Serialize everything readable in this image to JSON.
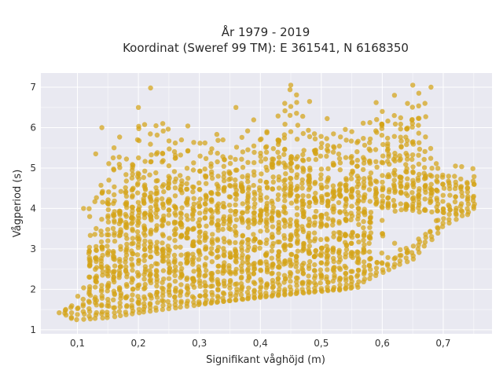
{
  "chart_data": {
    "type": "scatter",
    "title": "År 1979 - 2019",
    "subtitle": "Koordinat (Sweref 99 TM): E 361541, N 6168350",
    "xlabel": "Signifikant våghöjd (m)",
    "ylabel": "Vågperiod (s)",
    "xlim": [
      0.04,
      0.78
    ],
    "ylim": [
      0.9,
      7.35
    ],
    "x_ticks": [
      0.1,
      0.2,
      0.3,
      0.4,
      0.5,
      0.6,
      0.7
    ],
    "x_tick_labels": [
      "0,1",
      "0,2",
      "0,3",
      "0,4",
      "0,5",
      "0,6",
      "0,7"
    ],
    "y_ticks": [
      1,
      2,
      3,
      4,
      5,
      6,
      7
    ],
    "y_tick_labels": [
      "1",
      "2",
      "3",
      "4",
      "5",
      "6",
      "7"
    ],
    "grid": true,
    "marker_color": "#d4a418",
    "background_color": "#e9e9f1",
    "lower_envelope": [
      [
        0.07,
        1.42
      ],
      [
        0.1,
        1.25
      ],
      [
        0.15,
        1.3
      ],
      [
        0.2,
        1.42
      ],
      [
        0.25,
        1.52
      ],
      [
        0.3,
        1.62
      ],
      [
        0.35,
        1.72
      ],
      [
        0.4,
        1.8
      ],
      [
        0.45,
        1.88
      ],
      [
        0.5,
        1.95
      ],
      [
        0.55,
        2.03
      ],
      [
        0.6,
        2.42
      ],
      [
        0.65,
        2.75
      ],
      [
        0.7,
        3.55
      ],
      [
        0.75,
        4.0
      ]
    ],
    "upper_envelope": [
      [
        0.12,
        4.0
      ],
      [
        0.15,
        5.3
      ],
      [
        0.2,
        6.5
      ],
      [
        0.25,
        6.2
      ],
      [
        0.3,
        6.0
      ],
      [
        0.35,
        6.2
      ],
      [
        0.4,
        6.2
      ],
      [
        0.45,
        7.05
      ],
      [
        0.5,
        6.4
      ],
      [
        0.55,
        6.3
      ],
      [
        0.6,
        6.6
      ],
      [
        0.65,
        7.05
      ],
      [
        0.7,
        5.1
      ]
    ],
    "secondary_band": [
      [
        0.3,
        1.65
      ],
      [
        0.35,
        1.72
      ],
      [
        0.4,
        1.82
      ],
      [
        0.45,
        1.9
      ],
      [
        0.5,
        1.97
      ],
      [
        0.55,
        2.05
      ]
    ],
    "points": [
      [
        0.45,
        7.05
      ],
      [
        0.22,
        6.98
      ],
      [
        0.65,
        7.05
      ],
      [
        0.68,
        7.0
      ],
      [
        0.66,
        6.85
      ],
      [
        0.2,
        6.5
      ],
      [
        0.14,
        6.0
      ],
      [
        0.62,
        6.8
      ],
      [
        0.67,
        6.6
      ],
      [
        0.72,
        5.05
      ],
      [
        0.24,
        6.1
      ],
      [
        0.36,
        6.5
      ],
      [
        0.44,
        6.6
      ],
      [
        0.59,
        6.62
      ],
      [
        0.16,
        5.5
      ],
      [
        0.13,
        5.35
      ],
      [
        0.11,
        4.0
      ],
      [
        0.12,
        3.8
      ],
      [
        0.15,
        3.2
      ],
      [
        0.16,
        2.8
      ],
      [
        0.12,
        2.3
      ],
      [
        0.75,
        4.05
      ],
      [
        0.74,
        3.85
      ],
      [
        0.07,
        1.42
      ],
      [
        0.09,
        1.28
      ],
      [
        0.56,
        2.05
      ],
      [
        0.53,
        1.98
      ],
      [
        0.45,
        5.9
      ],
      [
        0.55,
        5.9
      ],
      [
        0.6,
        6.4
      ]
    ]
  }
}
